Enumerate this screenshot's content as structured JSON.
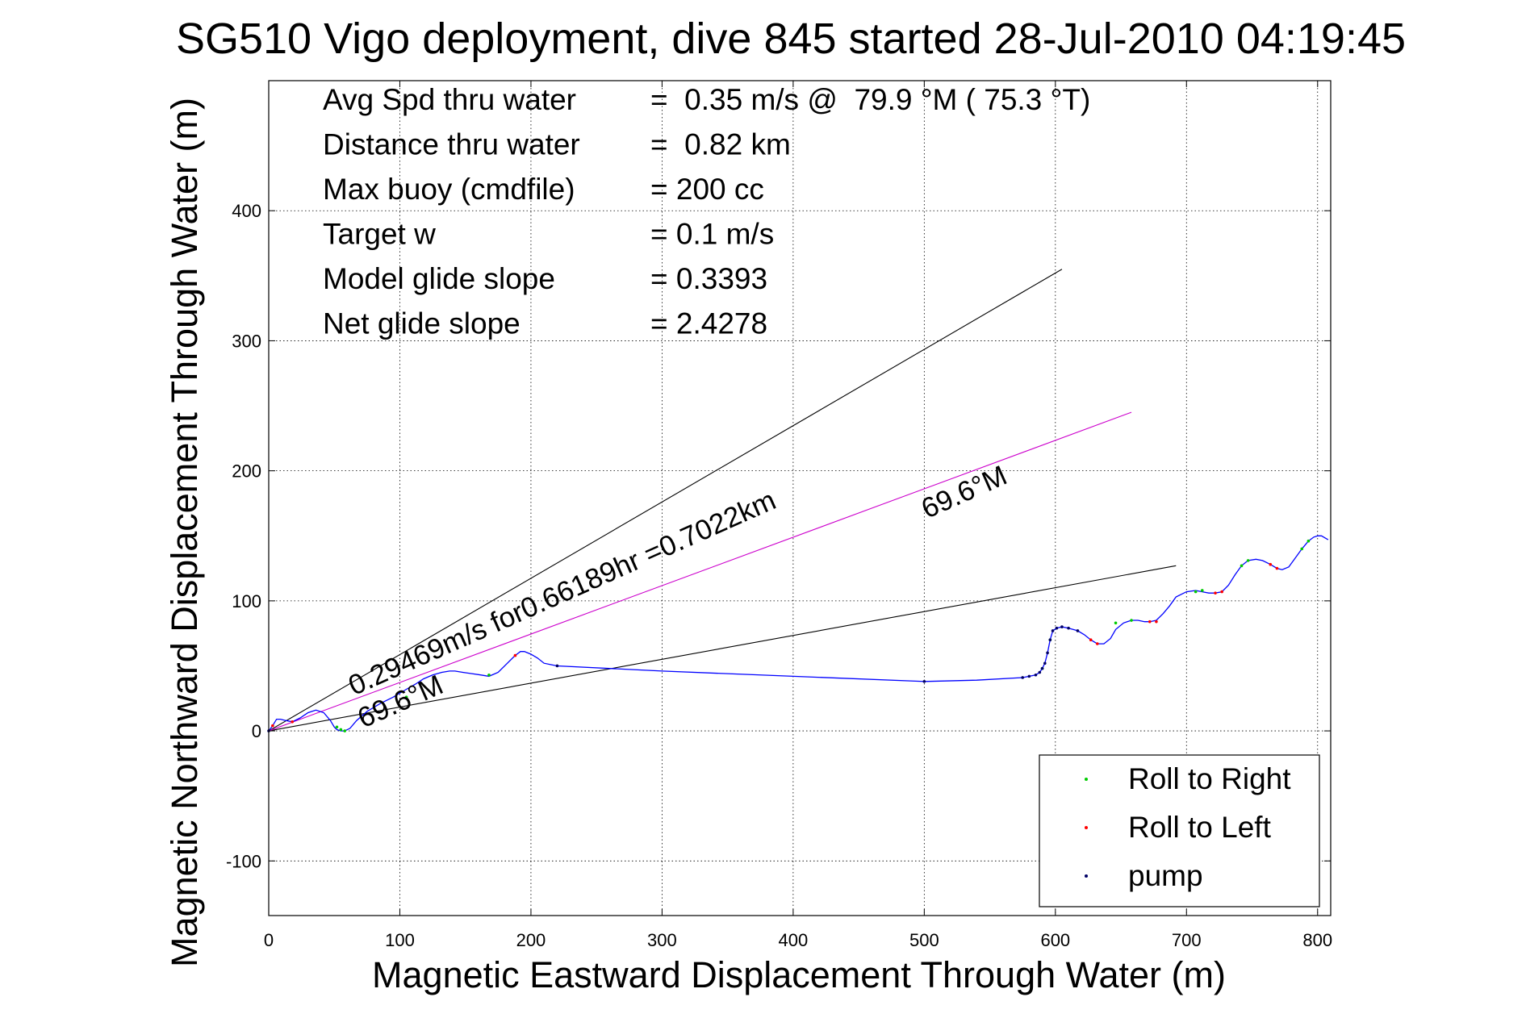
{
  "chart_data": {
    "type": "line",
    "title": "SG510 Vigo deployment, dive 845 started 28-Jul-2010 04:19:45",
    "xlabel": "Magnetic Eastward Displacement Through Water (m)",
    "ylabel": "Magnetic Northward Displacement Through Water (m)",
    "xlim": [
      0,
      810
    ],
    "ylim": [
      -142,
      500
    ],
    "xticks": [
      0,
      100,
      200,
      300,
      400,
      500,
      600,
      700,
      800
    ],
    "yticks": [
      -100,
      0,
      100,
      200,
      300,
      400
    ],
    "grid": true,
    "info_lines": [
      {
        "label": "Avg Spd thru water",
        "value": "=  0.35 m/s @  79.9 °M ( 75.3 °T)"
      },
      {
        "label": "Distance thru water",
        "value": "=  0.82 km"
      },
      {
        "label": "Max buoy (cmdfile)",
        "value": "= 200 cc"
      },
      {
        "label": "Target w",
        "value": "= 0.1 m/s"
      },
      {
        "label": "Model glide slope",
        "value": "= 0.3393"
      },
      {
        "label": "Net glide slope",
        "value": "= 2.4278"
      }
    ],
    "annotations": [
      {
        "text": "0.29469m/s for0.66189hr =0.7022km",
        "at": [
          65,
          27
        ],
        "angle_deg": 24
      },
      {
        "text": "69.6°M",
        "at": [
          72,
          2
        ],
        "angle_deg": 24
      },
      {
        "text": "69.6°M",
        "at": [
          502,
          163
        ],
        "angle_deg": 24
      }
    ],
    "reference_lines": [
      {
        "x": [
          0,
          605
        ],
        "y": [
          0,
          355
        ],
        "color": "#000000"
      },
      {
        "x": [
          0,
          692
        ],
        "y": [
          0,
          127
        ],
        "color": "#000000"
      },
      {
        "x": [
          0,
          658
        ],
        "y": [
          0,
          245
        ],
        "color": "#cc00cc"
      }
    ],
    "track": {
      "color": "#0000ff",
      "x": [
        0,
        3,
        6,
        9,
        13,
        18,
        24,
        30,
        36,
        42,
        47,
        50,
        52,
        55,
        58,
        62,
        67,
        75,
        85,
        95,
        105,
        112,
        118,
        125,
        132,
        138,
        142,
        148,
        155,
        162,
        168,
        175,
        182,
        188,
        192,
        195,
        200,
        205,
        210,
        215,
        220,
        300,
        400,
        500,
        540,
        575,
        580,
        585,
        588,
        590,
        592,
        594,
        596,
        598,
        601,
        605,
        610,
        617,
        622,
        627,
        632,
        637,
        642,
        646,
        652,
        658,
        663,
        668,
        672,
        677,
        682,
        687,
        692,
        700,
        707,
        712,
        717,
        722,
        727,
        732,
        737,
        742,
        747,
        753,
        758,
        764,
        769,
        773,
        778,
        783,
        788,
        793,
        797,
        800,
        803,
        808
      ],
      "y": [
        0,
        4,
        9,
        9,
        8,
        7,
        10,
        14,
        16,
        14,
        8,
        3,
        1,
        0,
        0,
        2,
        8,
        15,
        21,
        26,
        32,
        36,
        40,
        43,
        45,
        46,
        46,
        45,
        44,
        43,
        42,
        45,
        52,
        58,
        61,
        61,
        59,
        56,
        52,
        51,
        50,
        46,
        42,
        38,
        39,
        41,
        42,
        43,
        45,
        48,
        52,
        60,
        70,
        77,
        79,
        80,
        79,
        77,
        74,
        70,
        67,
        67,
        71,
        78,
        83,
        85,
        85,
        84,
        84,
        85,
        90,
        96,
        103,
        107,
        108,
        107,
        106,
        106,
        107,
        112,
        120,
        127,
        131,
        132,
        131,
        128,
        125,
        124,
        126,
        133,
        140,
        146,
        149,
        150,
        150,
        147
      ]
    },
    "series": [
      {
        "name": "Roll to Right",
        "color": "#00cc00",
        "x": [
          52,
          55,
          58,
          105,
          168,
          590,
          596,
          646,
          658,
          707,
          712,
          742,
          747,
          788,
          793
        ],
        "y": [
          3,
          1,
          0,
          26,
          43,
          48,
          70,
          83,
          85,
          107,
          108,
          127,
          131,
          140,
          146
        ]
      },
      {
        "name": "Roll to Left",
        "color": "#ff0000",
        "x": [
          3,
          18,
          188,
          627,
          632,
          672,
          677,
          722,
          727,
          764,
          769
        ],
        "y": [
          4,
          7,
          58,
          70,
          67,
          84,
          84,
          106,
          107,
          128,
          125
        ]
      },
      {
        "name": "pump",
        "color": "#000066",
        "x": [
          0,
          220,
          500,
          575,
          580,
          585,
          588,
          590,
          592,
          594,
          596,
          598,
          601,
          605,
          610,
          617
        ],
        "y": [
          0,
          50,
          38,
          41,
          42,
          43,
          45,
          48,
          52,
          60,
          70,
          77,
          79,
          80,
          79,
          77
        ]
      }
    ],
    "legend_location": "lower-right"
  }
}
